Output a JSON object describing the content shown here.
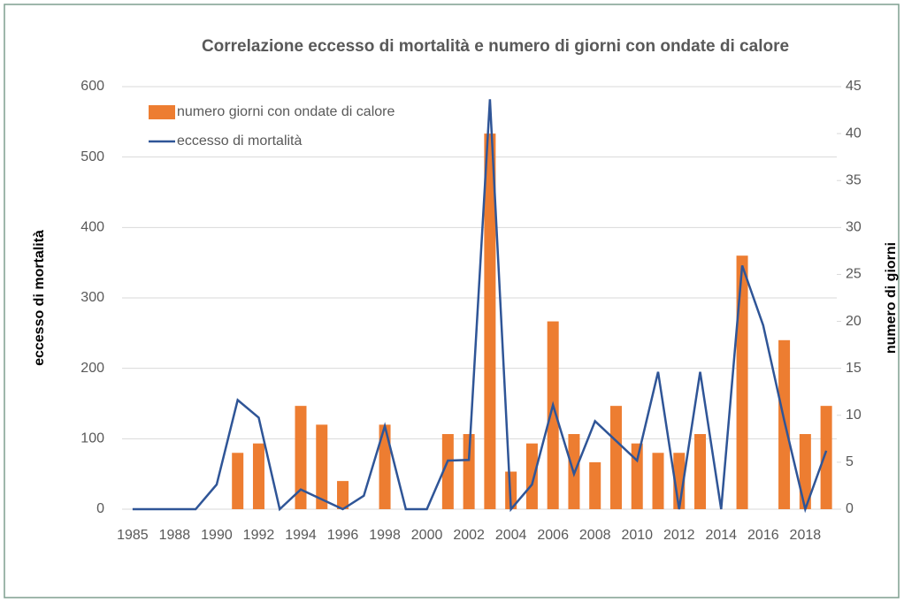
{
  "chart_data": {
    "type": "combo",
    "title": "Correlazione eccesso di mortalità e numero di giorni con ondate di calore",
    "y_label": "eccesso di mortalità",
    "y2_label": "numero di giorni",
    "categories": [
      "1985",
      null,
      "1988",
      null,
      "1990",
      null,
      "1992",
      null,
      "1994",
      null,
      "1996",
      null,
      "1998",
      null,
      "2000",
      null,
      "2002",
      null,
      "2004",
      null,
      "2006",
      null,
      "2008",
      null,
      "2010",
      null,
      "2012",
      null,
      "2014",
      null,
      "2016",
      null,
      "2018",
      null
    ],
    "series": [
      {
        "name": "numero giorni con ondate di calore",
        "type": "bar",
        "axis": "y2",
        "color": "#ed7d31",
        "values": [
          null,
          null,
          null,
          null,
          null,
          6,
          7,
          null,
          11,
          9,
          3,
          null,
          9,
          null,
          null,
          8,
          8,
          40,
          4,
          7,
          20,
          8,
          5,
          11,
          7,
          6,
          6,
          8,
          null,
          27,
          null,
          18,
          8,
          11
        ]
      },
      {
        "name": "eccesso di mortalità",
        "type": "line",
        "axis": "y",
        "color": "#2f5597",
        "values": [
          0,
          0,
          0,
          0,
          35,
          155,
          130,
          0,
          28,
          14,
          0,
          19,
          118,
          0,
          0,
          69,
          70,
          582,
          0,
          35,
          148,
          50,
          125,
          97,
          69,
          195,
          0,
          195,
          0,
          346,
          261,
          126,
          0,
          83
        ]
      }
    ],
    "ylim": [
      0,
      600
    ],
    "yticks": [
      0,
      100,
      200,
      300,
      400,
      500,
      600
    ],
    "y2lim": [
      0,
      45
    ],
    "y2ticks": [
      0,
      5,
      10,
      15,
      20,
      25,
      30,
      35,
      40,
      45
    ],
    "grid": true,
    "legend": "upper left"
  }
}
